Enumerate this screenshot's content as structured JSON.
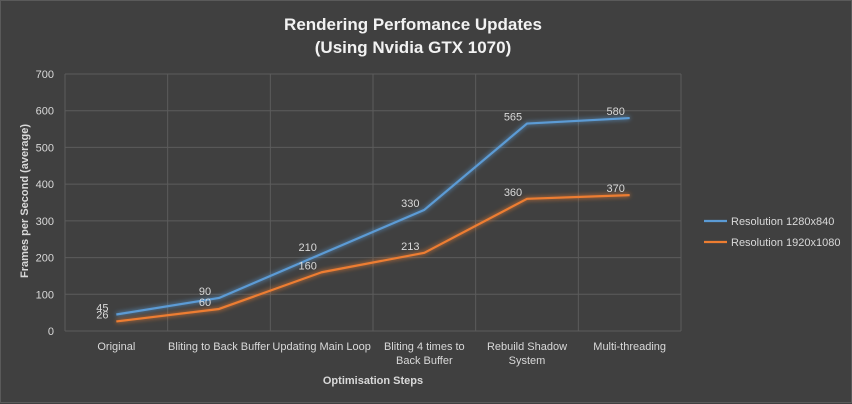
{
  "chart_data": {
    "type": "line",
    "title_lines": [
      "Rendering Perfomance Updates",
      "(Using Nvidia GTX 1070)"
    ],
    "xlabel": "Optimisation Steps",
    "ylabel": "Frames per Second (average)",
    "ylim": [
      0,
      700
    ],
    "yticks": [
      0,
      100,
      200,
      300,
      400,
      500,
      600,
      700
    ],
    "categories": [
      [
        "Original"
      ],
      [
        "Bliting to Back Buffer"
      ],
      [
        "Updating Main Loop"
      ],
      [
        "Bliting 4 times to",
        "Back Buffer"
      ],
      [
        "Rebuild Shadow",
        "System"
      ],
      [
        "Multi-threading"
      ]
    ],
    "series": [
      {
        "name": "Resolution 1280x840",
        "color": "#5b9bd5",
        "values": [
          45,
          90,
          210,
          330,
          565,
          580
        ]
      },
      {
        "name": "Resolution 1920x1080",
        "color": "#ed7d31",
        "values": [
          26,
          60,
          160,
          213,
          360,
          370
        ]
      }
    ],
    "grid": true,
    "legend_position": "right"
  }
}
